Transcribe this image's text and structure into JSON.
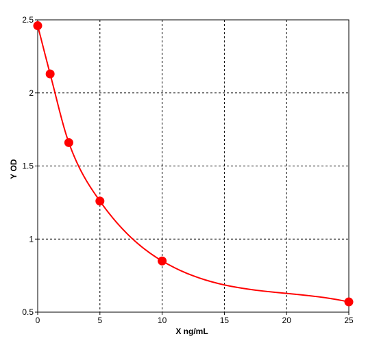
{
  "chart_data": {
    "type": "scatter",
    "xlabel": "X ng/mL",
    "ylabel": "Y OD",
    "xlim": [
      0,
      25
    ],
    "ylim": [
      0.5,
      2.5
    ],
    "x_ticks": [
      "0",
      "5",
      "10",
      "15",
      "20",
      "25"
    ],
    "y_ticks": [
      "0.5",
      "1",
      "1.5",
      "2",
      "2.5"
    ],
    "grid": true,
    "fit_curve": true,
    "series": [
      {
        "x": [
          0,
          1,
          2.5,
          5,
          10,
          25
        ],
        "y": [
          2.46,
          2.13,
          1.66,
          1.26,
          0.85,
          0.57
        ],
        "color": "#ff0000"
      }
    ]
  }
}
